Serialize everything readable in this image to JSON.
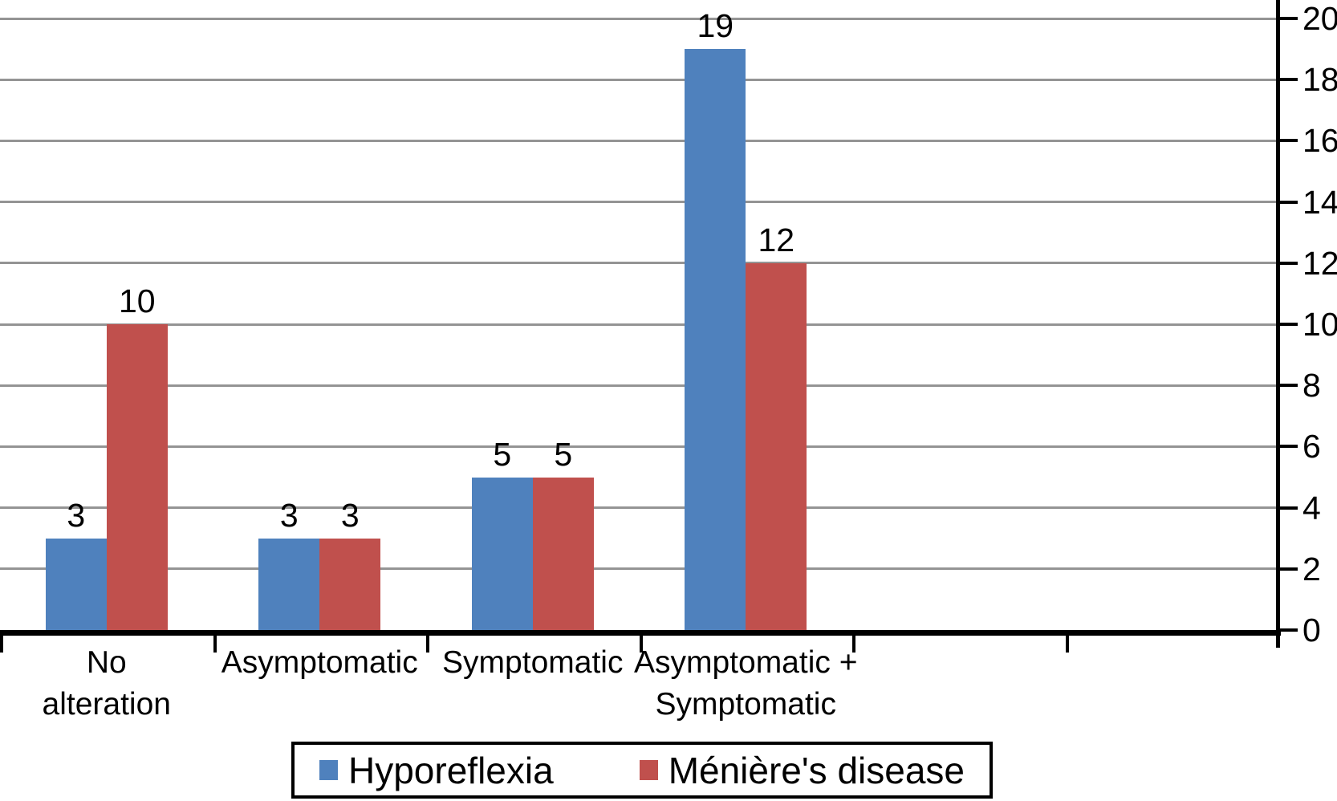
{
  "chart_data": {
    "type": "bar",
    "title": "",
    "categories": [
      "No\nalteration",
      "Asymptomatic",
      "Symptomatic",
      "Asymptomatic +\nSymptomatic"
    ],
    "series": [
      {
        "name": "Hyporeflexia",
        "color": "#4F81BD",
        "values": [
          3,
          3,
          5,
          19
        ]
      },
      {
        "name": "Ménière's disease",
        "color": "#C0504D",
        "values": [
          10,
          3,
          5,
          12
        ]
      }
    ],
    "data_labels_shown": true,
    "xlabel": "",
    "ylabel": "",
    "ylim": [
      0,
      20
    ],
    "yticks": [
      0,
      2,
      4,
      6,
      8,
      10,
      12,
      14,
      16,
      18,
      20
    ],
    "y_axis_side": "right",
    "grid": true,
    "gridline_color": "#949494",
    "axis_color": "#000000",
    "legend_position": "bottom",
    "legend_border": true,
    "x_slot_count": 6
  }
}
